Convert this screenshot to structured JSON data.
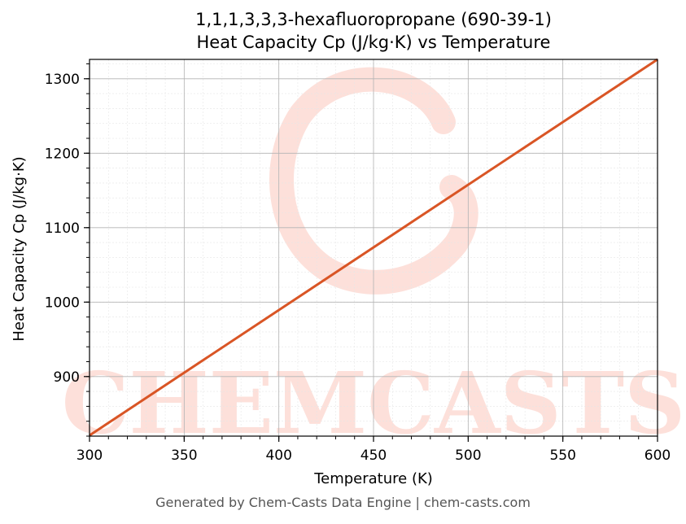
{
  "chart_data": {
    "type": "line",
    "title_line1": "1,1,1,3,3,3-hexafluoropropane (690-39-1)",
    "title_line2": "Heat Capacity Cp (J/kg·K) vs Temperature",
    "xlabel": "Temperature (K)",
    "ylabel": "Heat Capacity Cp (J/kg·K)",
    "xlim": [
      300,
      600
    ],
    "ylim": [
      820,
      1326
    ],
    "xticks": [
      300,
      350,
      400,
      450,
      500,
      550,
      600
    ],
    "yticks": [
      900,
      1000,
      1100,
      1200,
      1300
    ],
    "grid": true,
    "series": [
      {
        "x": [
          300,
          600
        ],
        "y": [
          821,
          1326
        ],
        "color": "#d95525"
      }
    ]
  },
  "watermark": {
    "text": "CHEMCASTS",
    "color": "#fde0da"
  },
  "footer": "Generated by Chem-Casts Data Engine | chem-casts.com"
}
